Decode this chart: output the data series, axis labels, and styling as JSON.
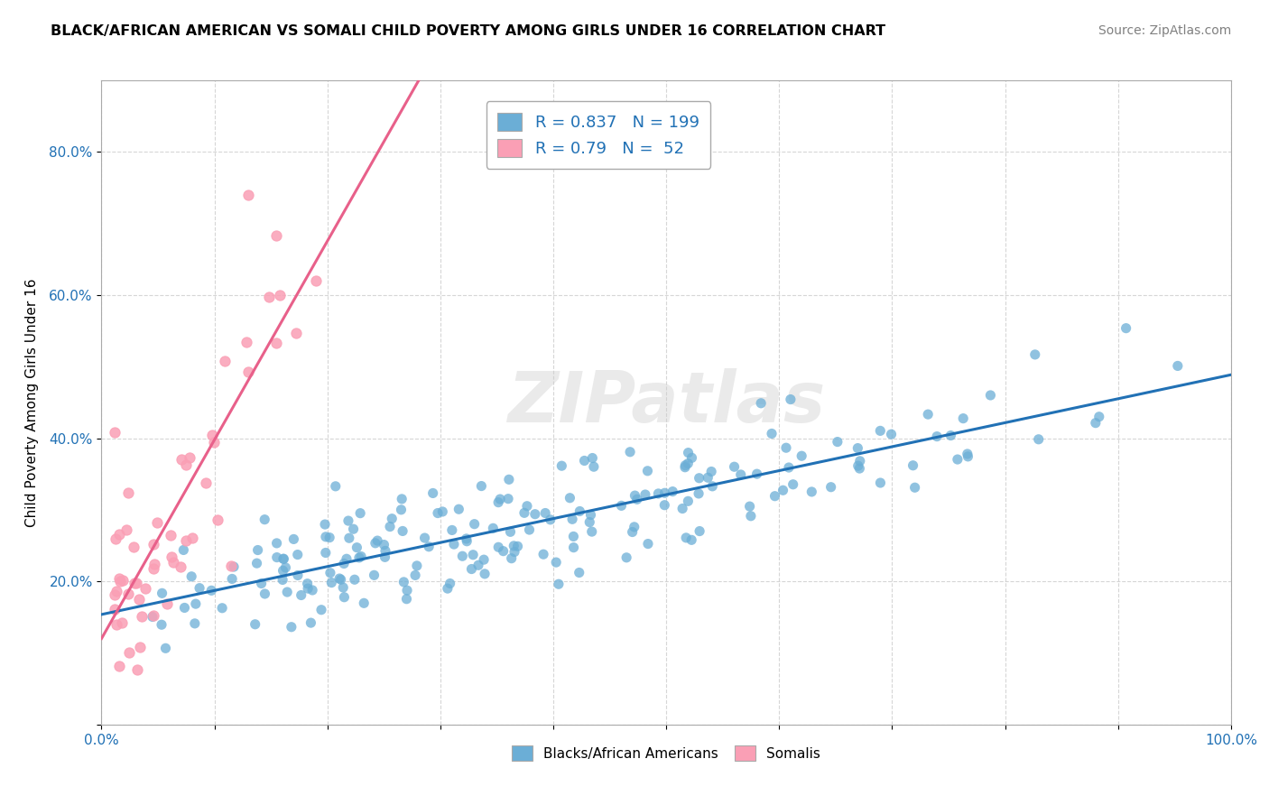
{
  "title": "BLACK/AFRICAN AMERICAN VS SOMALI CHILD POVERTY AMONG GIRLS UNDER 16 CORRELATION CHART",
  "source": "Source: ZipAtlas.com",
  "ylabel": "Child Poverty Among Girls Under 16",
  "xlim": [
    0,
    1.0
  ],
  "ylim": [
    0,
    0.9
  ],
  "x_ticks": [
    0.0,
    0.1,
    0.2,
    0.3,
    0.4,
    0.5,
    0.6,
    0.7,
    0.8,
    0.9,
    1.0
  ],
  "x_tick_labels": [
    "0.0%",
    "",
    "",
    "",
    "",
    "",
    "",
    "",
    "",
    "",
    "100.0%"
  ],
  "y_ticks": [
    0.0,
    0.2,
    0.4,
    0.6,
    0.8
  ],
  "y_tick_labels": [
    "",
    "20.0%",
    "40.0%",
    "60.0%",
    "80.0%"
  ],
  "blue_R": 0.837,
  "blue_N": 199,
  "pink_R": 0.79,
  "pink_N": 52,
  "blue_color": "#6baed6",
  "pink_color": "#fa9fb5",
  "blue_line_color": "#2171b5",
  "pink_line_color": "#e8608a",
  "legend_color": "#2171b5",
  "watermark_color": "#cccccc",
  "background_color": "#ffffff",
  "grid_color": "#cccccc"
}
